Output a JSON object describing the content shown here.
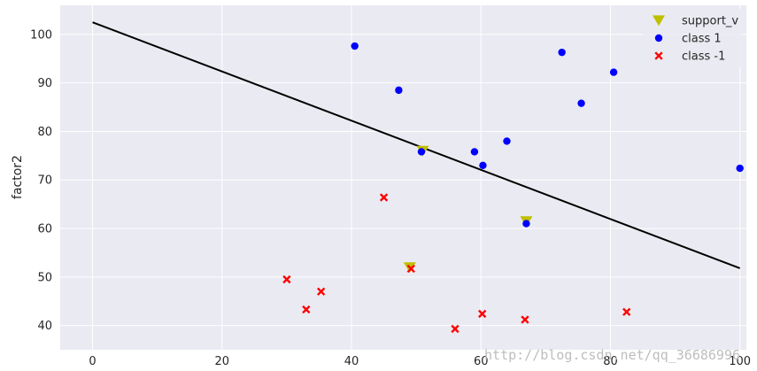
{
  "chart_data": {
    "type": "scatter",
    "title": "",
    "xlabel": "",
    "ylabel": "factor2",
    "xlim": [
      -5,
      101
    ],
    "ylim": [
      35,
      106
    ],
    "xticks": [
      0,
      20,
      40,
      60,
      80,
      100
    ],
    "yticks": [
      40,
      50,
      60,
      70,
      80,
      90,
      100
    ],
    "grid": true,
    "background": "#eaeaf2",
    "legend_position": "top-right",
    "decision_line": {
      "color": "#000000",
      "x": [
        0,
        100
      ],
      "y": [
        102.5,
        51.8
      ]
    },
    "series": [
      {
        "name": "support_v",
        "marker": "triangle-down",
        "color": "#bfbf00",
        "points": [
          [
            51,
            76
          ],
          [
            67,
            61.5
          ],
          [
            49,
            52
          ]
        ]
      },
      {
        "name": "class 1",
        "marker": "circle",
        "color": "#0000ff",
        "points": [
          [
            40.5,
            97.6
          ],
          [
            47.3,
            88.5
          ],
          [
            50.8,
            75.8
          ],
          [
            59,
            75.8
          ],
          [
            60.3,
            73
          ],
          [
            64,
            78
          ],
          [
            67,
            61
          ],
          [
            72.5,
            96.3
          ],
          [
            75.5,
            85.8
          ],
          [
            80.5,
            92.2
          ],
          [
            100,
            72.4
          ]
        ]
      },
      {
        "name": "class -1",
        "marker": "x",
        "color": "#ff0000",
        "points": [
          [
            30,
            49.5
          ],
          [
            33,
            43.3
          ],
          [
            35.3,
            47
          ],
          [
            45,
            66.4
          ],
          [
            49.2,
            51.7
          ],
          [
            56,
            39.3
          ],
          [
            60.2,
            42.4
          ],
          [
            66.8,
            41.2
          ],
          [
            82.5,
            42.8
          ]
        ]
      }
    ]
  },
  "watermark": "http://blog.csdn.net/qq_36686996"
}
